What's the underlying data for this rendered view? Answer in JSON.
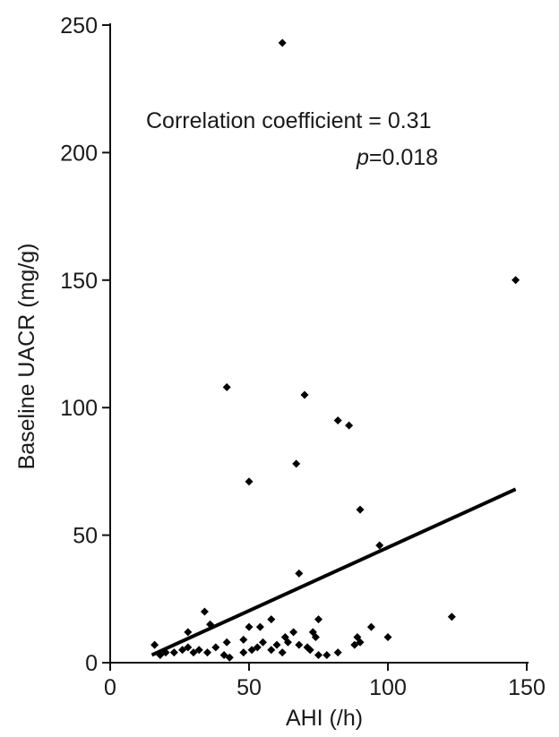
{
  "chart_data": {
    "type": "scatter",
    "xlabel": "AHI (/h)",
    "ylabel": "Baseline UACR (mg/g)",
    "xlim": [
      0,
      150
    ],
    "ylim": [
      0,
      250
    ],
    "x_ticks": [
      0,
      50,
      100,
      150
    ],
    "y_ticks": [
      0,
      50,
      100,
      150,
      200,
      250
    ],
    "grid": false,
    "annotation": {
      "line1": "Correlation coefficient = 0.31",
      "p_symbol": "p",
      "p_value": "=0.018"
    },
    "points": [
      {
        "x": 62,
        "y": 243
      },
      {
        "x": 146,
        "y": 150
      },
      {
        "x": 42,
        "y": 108
      },
      {
        "x": 70,
        "y": 105
      },
      {
        "x": 82,
        "y": 95
      },
      {
        "x": 86,
        "y": 93
      },
      {
        "x": 67,
        "y": 78
      },
      {
        "x": 50,
        "y": 71
      },
      {
        "x": 90,
        "y": 60
      },
      {
        "x": 97,
        "y": 46
      },
      {
        "x": 68,
        "y": 35
      },
      {
        "x": 123,
        "y": 18
      },
      {
        "x": 34,
        "y": 20
      },
      {
        "x": 36,
        "y": 15
      },
      {
        "x": 28,
        "y": 12
      },
      {
        "x": 50,
        "y": 14
      },
      {
        "x": 54,
        "y": 14
      },
      {
        "x": 58,
        "y": 17
      },
      {
        "x": 75,
        "y": 17
      },
      {
        "x": 73,
        "y": 12
      },
      {
        "x": 66,
        "y": 12
      },
      {
        "x": 63,
        "y": 10
      },
      {
        "x": 94,
        "y": 14
      },
      {
        "x": 100,
        "y": 10
      },
      {
        "x": 89,
        "y": 10
      },
      {
        "x": 16,
        "y": 7
      },
      {
        "x": 18,
        "y": 3
      },
      {
        "x": 20,
        "y": 4
      },
      {
        "x": 23,
        "y": 4
      },
      {
        "x": 26,
        "y": 5
      },
      {
        "x": 28,
        "y": 6
      },
      {
        "x": 30,
        "y": 4
      },
      {
        "x": 32,
        "y": 5
      },
      {
        "x": 35,
        "y": 4
      },
      {
        "x": 38,
        "y": 6
      },
      {
        "x": 41,
        "y": 3
      },
      {
        "x": 42,
        "y": 8
      },
      {
        "x": 43,
        "y": 2
      },
      {
        "x": 48,
        "y": 9
      },
      {
        "x": 51,
        "y": 5
      },
      {
        "x": 53,
        "y": 6
      },
      {
        "x": 55,
        "y": 8
      },
      {
        "x": 58,
        "y": 5
      },
      {
        "x": 60,
        "y": 7
      },
      {
        "x": 62,
        "y": 4
      },
      {
        "x": 64,
        "y": 8
      },
      {
        "x": 68,
        "y": 7
      },
      {
        "x": 71,
        "y": 6
      },
      {
        "x": 74,
        "y": 10
      },
      {
        "x": 75,
        "y": 3
      },
      {
        "x": 78,
        "y": 3
      },
      {
        "x": 82,
        "y": 4
      },
      {
        "x": 88,
        "y": 7
      },
      {
        "x": 90,
        "y": 8
      },
      {
        "x": 48,
        "y": 4
      },
      {
        "x": 72,
        "y": 5
      }
    ],
    "regression_line": {
      "x": [
        15,
        146
      ],
      "y": [
        3,
        68
      ]
    }
  }
}
